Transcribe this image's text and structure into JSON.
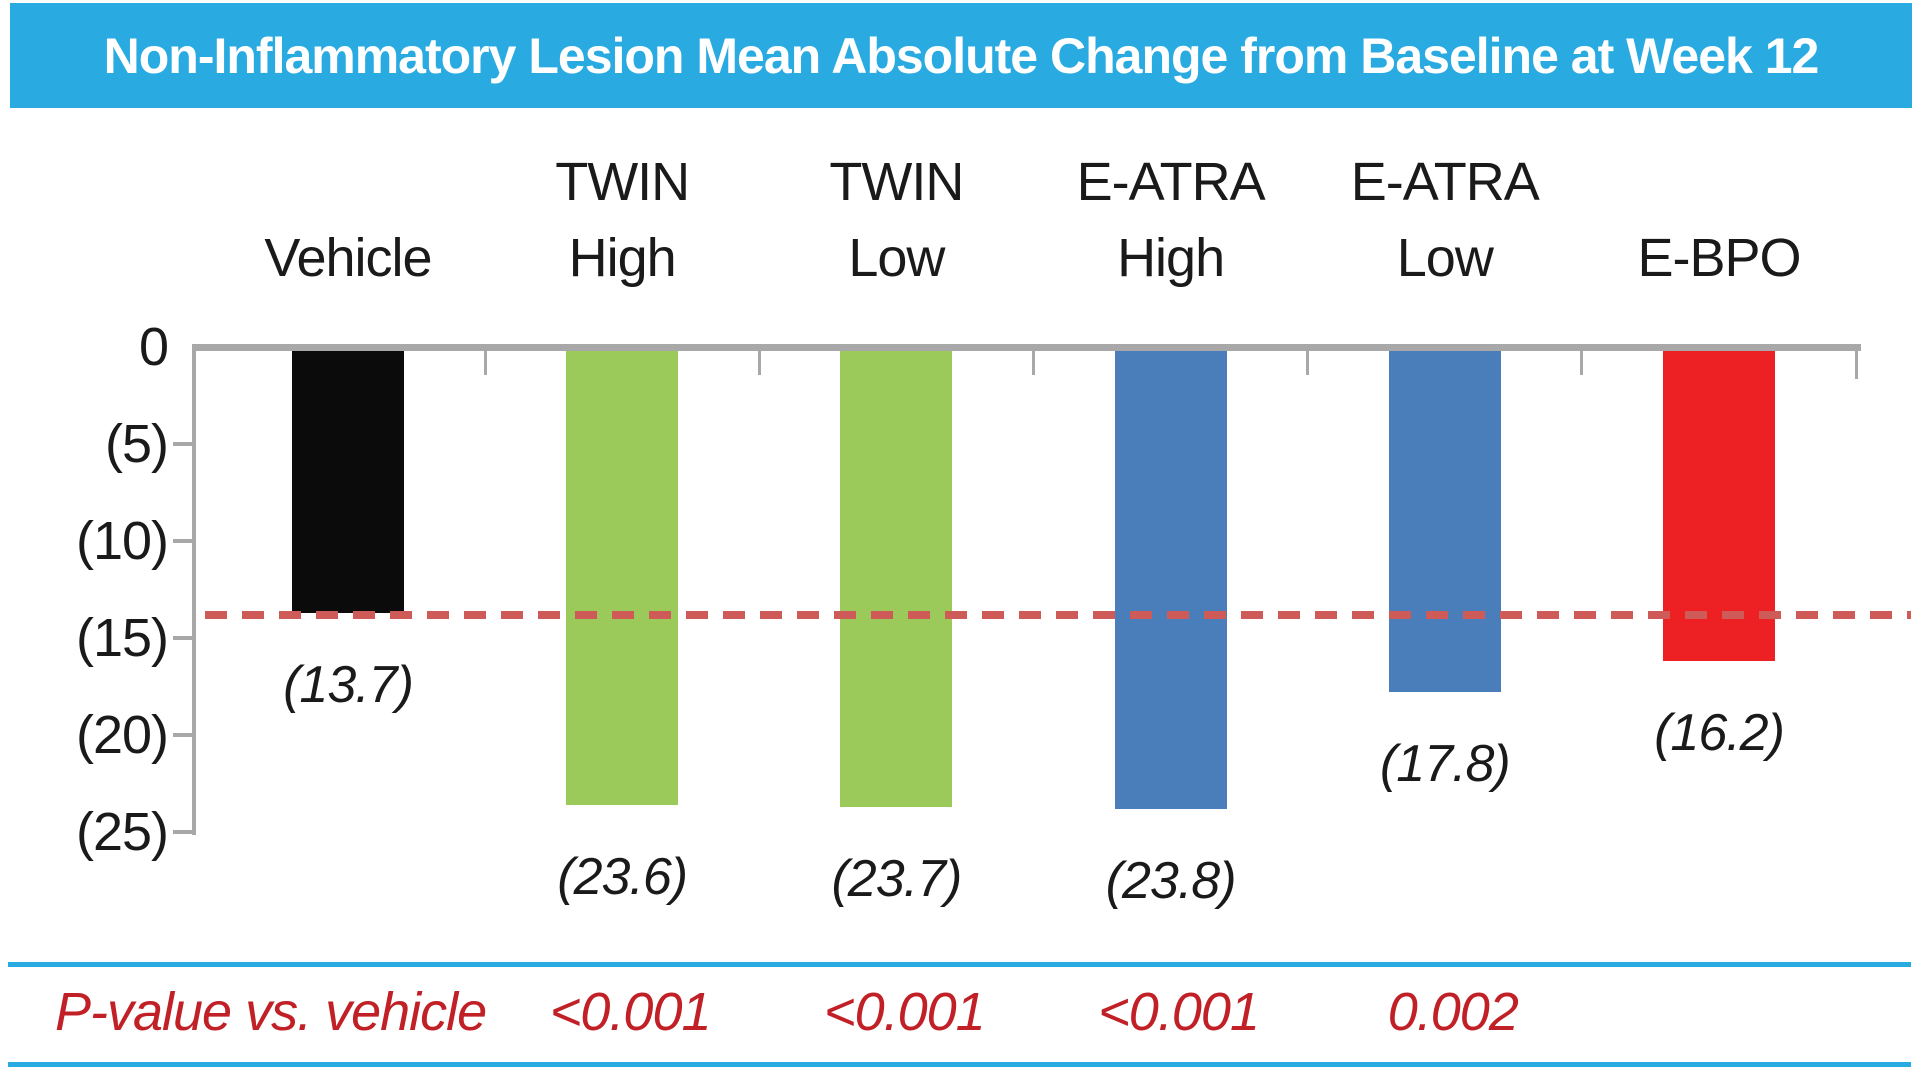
{
  "title_bar": {
    "text": "Non-Inflammatory Lesion Mean Absolute Change from Baseline at Week 12",
    "background": "#29ABE2",
    "text_color": "#FFFFFF"
  },
  "chart_data": {
    "type": "bar",
    "title": "Non-Inflammatory Lesion Mean Absolute Change from Baseline at Week 12",
    "xlabel": "",
    "ylabel": "",
    "ylim": [
      -25,
      0
    ],
    "grid": false,
    "y_tick_labels": [
      "0",
      "(5)",
      "(10)",
      "(15)",
      "(20)",
      "(25)"
    ],
    "y_tick_values": [
      0,
      -5,
      -10,
      -15,
      -20,
      -25
    ],
    "categories": [
      [
        "Vehicle"
      ],
      [
        "TWIN",
        "High"
      ],
      [
        "TWIN",
        "Low"
      ],
      [
        "E-ATRA",
        "High"
      ],
      [
        "E-ATRA",
        "Low"
      ],
      [
        "E-BPO"
      ]
    ],
    "values": [
      -13.7,
      -23.6,
      -23.7,
      -23.8,
      -17.8,
      -16.2
    ],
    "data_labels": [
      "(13.7)",
      "(23.6)",
      "(23.7)",
      "(23.8)",
      "(17.8)",
      "(16.2)"
    ],
    "bar_colors": [
      "#0B0B0B",
      "#9BC95A",
      "#9BC95A",
      "#4A7EBB",
      "#4A7EBB",
      "#ED2124"
    ],
    "reference_line": {
      "value": -13.7,
      "style": "dashed",
      "color": "#CE5B57"
    },
    "axis_color": "#A8A8A8",
    "label_color": "#1A1A1A"
  },
  "pvalue_row": {
    "label": "P-value vs. vehicle",
    "values": [
      "",
      "<0.001",
      "<0.001",
      "<0.001",
      "0.002",
      ""
    ],
    "text_color": "#C02026",
    "rule_color": "#29ABE2"
  }
}
